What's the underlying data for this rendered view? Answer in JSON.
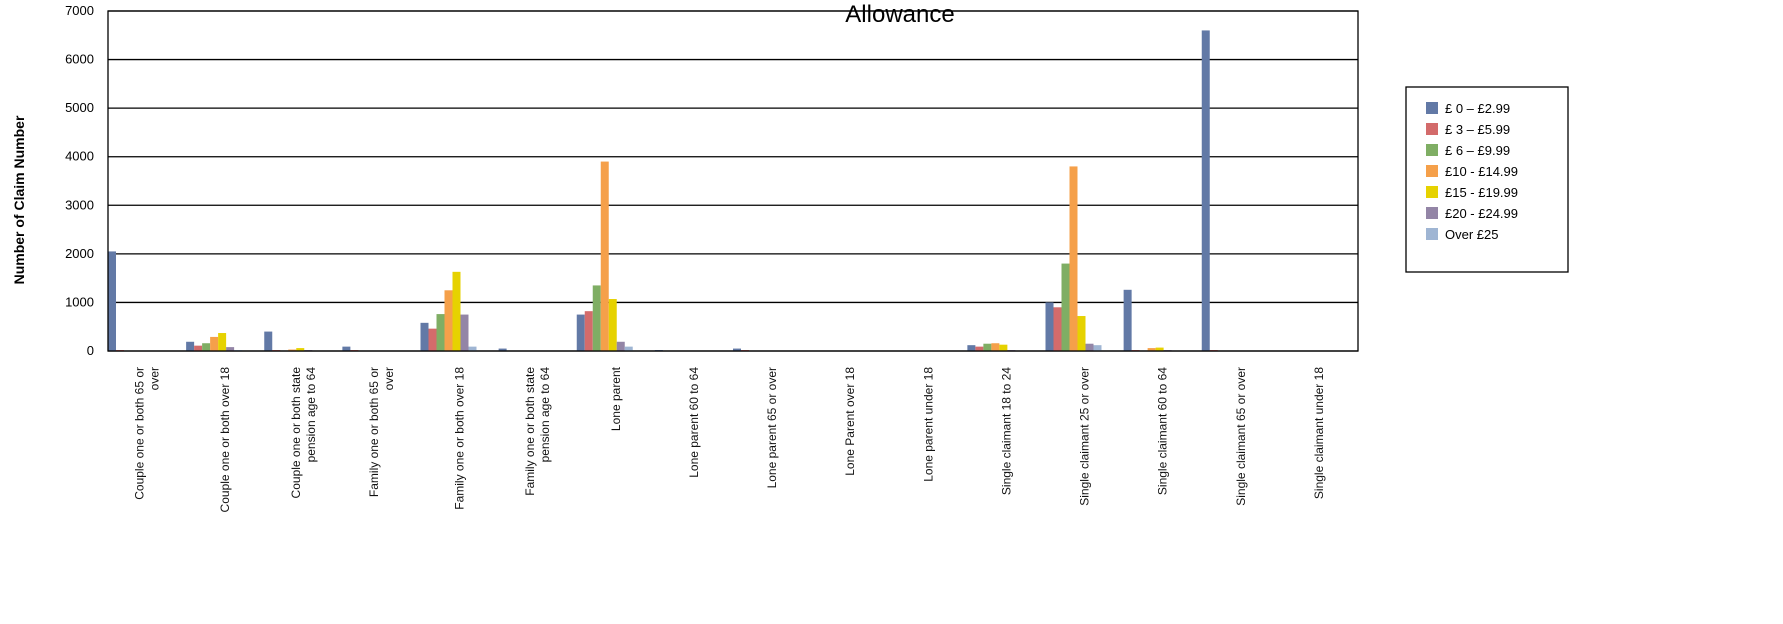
{
  "chart_data": {
    "type": "bar",
    "title": "Allowance",
    "ylabel": "Number of Claim Number",
    "xlabel": "",
    "ylim": [
      0,
      7000
    ],
    "yticks": [
      0,
      1000,
      2000,
      3000,
      4000,
      5000,
      6000,
      7000
    ],
    "grid": true,
    "legend_position": "right",
    "categories": [
      [
        "Couple one or both 65 or",
        "over"
      ],
      [
        "Couple one or both over 18"
      ],
      [
        "Couple one or both state",
        "pension age to 64"
      ],
      [
        "Family one or both 65 or",
        "over"
      ],
      [
        "Family one or both over 18"
      ],
      [
        "Family one or both state",
        "pension age to 64"
      ],
      [
        "Lone parent"
      ],
      [
        "Lone parent 60 to 64"
      ],
      [
        "Lone parent 65 or over"
      ],
      [
        "Lone Parent over 18"
      ],
      [
        "Lone parent under 18"
      ],
      [
        "Single claimant 18 to 24"
      ],
      [
        "Single claimant 25 or over"
      ],
      [
        "Single claimant 60 to 64"
      ],
      [
        "Single claimant 65 or over"
      ],
      [
        "Single claimant under 18"
      ]
    ],
    "series": [
      {
        "name": "£ 0 – £2.99",
        "color": "#6279a6",
        "values": [
          2050,
          190,
          400,
          90,
          580,
          50,
          750,
          20,
          50,
          0,
          0,
          120,
          1000,
          1260,
          6600,
          0
        ]
      },
      {
        "name": "£ 3 – £5.99",
        "color": "#d36b6b",
        "values": [
          20,
          110,
          20,
          20,
          460,
          10,
          820,
          10,
          20,
          0,
          0,
          90,
          900,
          20,
          20,
          0
        ]
      },
      {
        "name": "£ 6 – £9.99",
        "color": "#7fae64",
        "values": [
          10,
          160,
          10,
          10,
          760,
          10,
          1350,
          10,
          10,
          0,
          0,
          150,
          1800,
          10,
          10,
          0
        ]
      },
      {
        "name": "£10 - £14.99",
        "color": "#f5a04a",
        "values": [
          10,
          290,
          30,
          10,
          1250,
          10,
          3900,
          10,
          10,
          0,
          0,
          160,
          3800,
          60,
          10,
          0
        ]
      },
      {
        "name": "£15 - £19.99",
        "color": "#e6d200",
        "values": [
          10,
          370,
          60,
          10,
          1630,
          10,
          1070,
          10,
          10,
          0,
          0,
          130,
          720,
          70,
          10,
          0
        ]
      },
      {
        "name": "£20 - £24.99",
        "color": "#9385a6",
        "values": [
          10,
          80,
          20,
          10,
          750,
          10,
          190,
          10,
          10,
          0,
          0,
          20,
          150,
          20,
          10,
          0
        ]
      },
      {
        "name": "Over £25",
        "color": "#9fb5d3",
        "values": [
          10,
          20,
          10,
          10,
          90,
          10,
          90,
          10,
          10,
          0,
          0,
          10,
          120,
          10,
          10,
          0
        ]
      }
    ]
  }
}
